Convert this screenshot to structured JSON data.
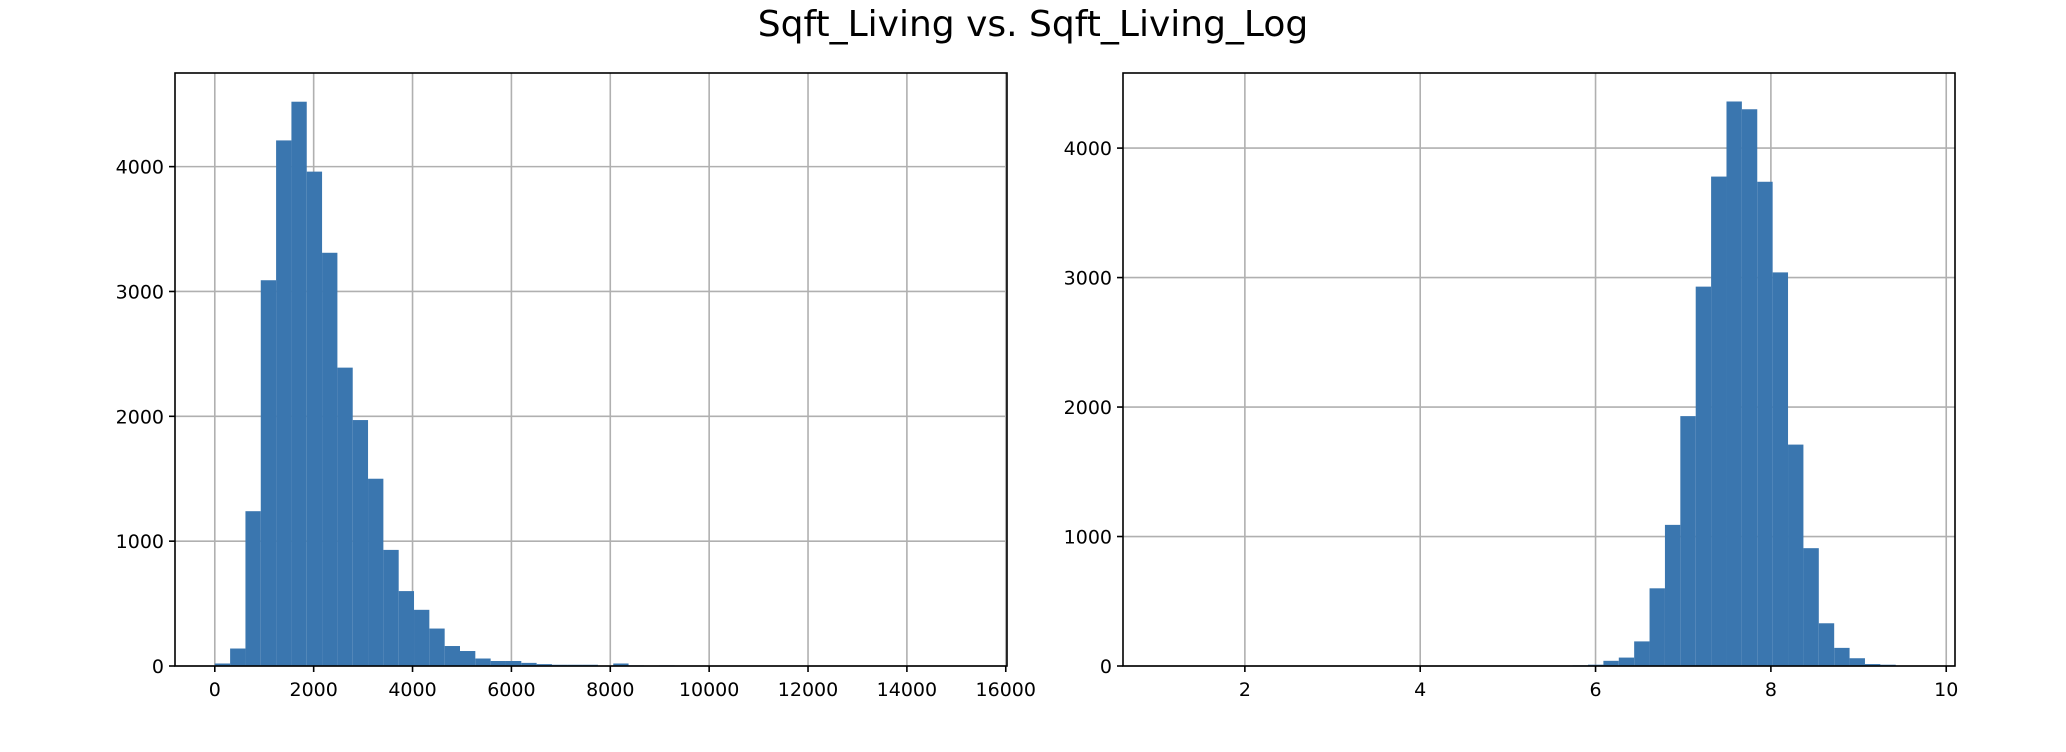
{
  "figure": {
    "title": "Sqft_Living vs. Sqft_Living_Log"
  },
  "chart_data": [
    {
      "type": "bar",
      "histogram": true,
      "title": "",
      "xlabel": "",
      "ylabel": "",
      "color": "#3a76af",
      "grid": true,
      "xlim": [
        -805,
        16025
      ],
      "ylim": [
        0,
        4750
      ],
      "xticks": [
        0,
        2000,
        4000,
        6000,
        8000,
        10000,
        12000,
        14000,
        16000
      ],
      "xtick_labels": [
        "0",
        "2000",
        "4000",
        "6000",
        "8000",
        "10000",
        "12000",
        "14000",
        "16000"
      ],
      "yticks": [
        0,
        1000,
        2000,
        3000,
        4000
      ],
      "ytick_labels": [
        "0",
        "1000",
        "2000",
        "3000",
        "4000"
      ],
      "bin_edges": [
        0,
        310,
        620,
        930,
        1240,
        1550,
        1860,
        2170,
        2480,
        2790,
        3100,
        3410,
        3720,
        4030,
        4340,
        4650,
        4960,
        5270,
        5580,
        5890,
        6200,
        6510,
        6820,
        7130,
        7440,
        7750,
        8060,
        8370,
        8680,
        8990,
        9300,
        9610,
        9920,
        10230,
        10540,
        10850,
        11160,
        11470,
        11780,
        12090,
        12400,
        12710,
        13020,
        13330,
        13640,
        13950,
        14260,
        14570,
        14880,
        15190,
        15500
      ],
      "values": [
        20,
        140,
        1240,
        3090,
        4210,
        4520,
        3960,
        3310,
        2390,
        1970,
        1500,
        930,
        600,
        450,
        300,
        160,
        120,
        60,
        40,
        40,
        25,
        15,
        10,
        10,
        10,
        0,
        20,
        5,
        0,
        5,
        0,
        0,
        0,
        0,
        0,
        0,
        0,
        0,
        0,
        0,
        0,
        0,
        0,
        0,
        0,
        0,
        0,
        0,
        0,
        1
      ]
    },
    {
      "type": "bar",
      "histogram": true,
      "title": "",
      "xlabel": "",
      "ylabel": "",
      "color": "#3a76af",
      "grid": true,
      "xlim": [
        0.61,
        10.1
      ],
      "ylim": [
        0,
        4580
      ],
      "xticks": [
        2,
        4,
        6,
        8,
        10
      ],
      "xtick_labels": [
        "2",
        "4",
        "6",
        "8",
        "10"
      ],
      "yticks": [
        0,
        1000,
        2000,
        3000,
        4000
      ],
      "ytick_labels": [
        "0",
        "1000",
        "2000",
        "3000",
        "4000"
      ],
      "bin_edges": [
        1.0,
        1.1755,
        1.351,
        1.5265,
        1.702,
        1.8775,
        2.053,
        2.2285,
        2.404,
        2.5795,
        2.755,
        2.9305,
        3.106,
        3.2815,
        3.457,
        3.6325,
        3.808,
        3.9835,
        4.159,
        4.3345,
        4.51,
        4.6855,
        4.861,
        5.0365,
        5.212,
        5.3875,
        5.563,
        5.7385,
        5.914,
        6.0895,
        6.265,
        6.4405,
        6.616,
        6.7915,
        6.967,
        7.1425,
        7.318,
        7.4935,
        7.669,
        7.8445,
        8.02,
        8.1955,
        8.371,
        8.5465,
        8.722,
        8.8975,
        9.073,
        9.2485,
        9.424,
        9.5995,
        9.775
      ],
      "values": [
        1,
        0,
        0,
        0,
        0,
        0,
        0,
        0,
        0,
        0,
        0,
        0,
        0,
        0,
        0,
        0,
        0,
        0,
        0,
        0,
        0,
        0,
        0,
        0,
        0,
        0,
        0,
        5,
        10,
        40,
        65,
        190,
        600,
        1090,
        1930,
        2930,
        3780,
        4360,
        4300,
        3740,
        3040,
        1710,
        910,
        330,
        140,
        60,
        15,
        10,
        0,
        0
      ]
    }
  ]
}
